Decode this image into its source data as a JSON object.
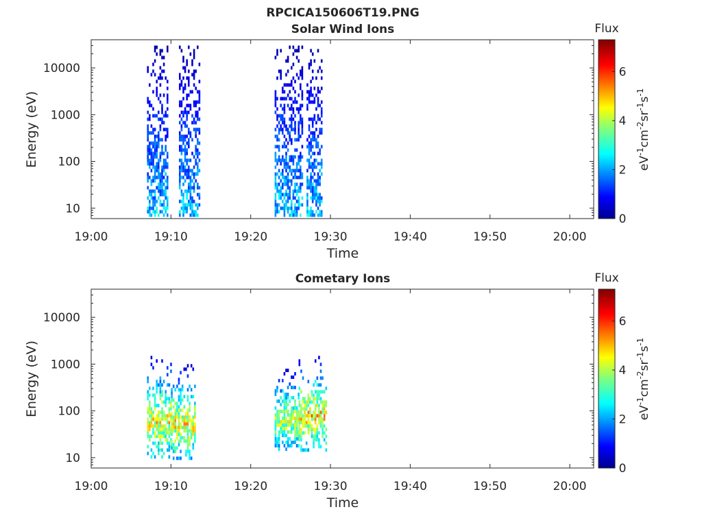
{
  "figure": {
    "title": "RPCICA150606T19.PNG"
  },
  "chart_data": [
    {
      "type": "heatmap",
      "title": "Solar Wind Ions",
      "xlabel": "Time",
      "ylabel": "Energy (eV)",
      "y_scale": "log",
      "ylim": [
        6,
        40000
      ],
      "xlim": [
        "19:00",
        "20:03"
      ],
      "x_ticks": [
        "19:00",
        "19:10",
        "19:20",
        "19:30",
        "19:40",
        "19:50",
        "20:00"
      ],
      "y_ticks": [
        "10",
        "100",
        "1000",
        "10000"
      ],
      "grid": false,
      "colorbar": {
        "title": "Flux",
        "label": "eV-1cm-2sr-1s-1",
        "range": [
          0,
          7.3
        ],
        "ticks": [
          "0",
          "2",
          "4",
          "6"
        ],
        "colormap": "jet"
      },
      "bursts": [
        {
          "t_start": "19:07",
          "t_end": "19:09:30",
          "e_min": 6,
          "e_max": 30000,
          "flux_peak": 2.5
        },
        {
          "t_start": "19:11",
          "t_end": "19:13:30",
          "e_min": 6,
          "e_max": 30000,
          "flux_peak": 2.5
        },
        {
          "t_start": "19:23",
          "t_end": "19:26:30",
          "e_min": 6,
          "e_max": 30000,
          "flux_peak": 2.5
        },
        {
          "t_start": "19:27",
          "t_end": "19:29",
          "e_min": 6,
          "e_max": 30000,
          "flux_peak": 2.5
        }
      ]
    },
    {
      "type": "heatmap",
      "title": "Cometary Ions",
      "xlabel": "Time",
      "ylabel": "Energy (eV)",
      "y_scale": "log",
      "ylim": [
        6,
        40000
      ],
      "xlim": [
        "19:00",
        "20:03"
      ],
      "x_ticks": [
        "19:00",
        "19:10",
        "19:20",
        "19:30",
        "19:40",
        "19:50",
        "20:00"
      ],
      "y_ticks": [
        "10",
        "100",
        "1000",
        "10000"
      ],
      "grid": false,
      "colorbar": {
        "title": "Flux",
        "label": "eV-1cm-2sr-1s-1",
        "range": [
          0,
          7.3
        ],
        "ticks": [
          "0",
          "2",
          "4",
          "6"
        ],
        "colormap": "jet"
      },
      "bursts": [
        {
          "t_start": "19:07",
          "t_end": "19:10",
          "e_min": 10,
          "e_max": 1500,
          "flux_peak": 5.0
        },
        {
          "t_start": "19:10",
          "t_end": "19:13",
          "e_min": 10,
          "e_max": 1000,
          "flux_peak": 5.0
        },
        {
          "t_start": "19:23",
          "t_end": "19:26",
          "e_min": 15,
          "e_max": 800,
          "flux_peak": 4.6
        },
        {
          "t_start": "19:26",
          "t_end": "19:29:30",
          "e_min": 15,
          "e_max": 1500,
          "flux_peak": 5.2
        }
      ]
    }
  ]
}
